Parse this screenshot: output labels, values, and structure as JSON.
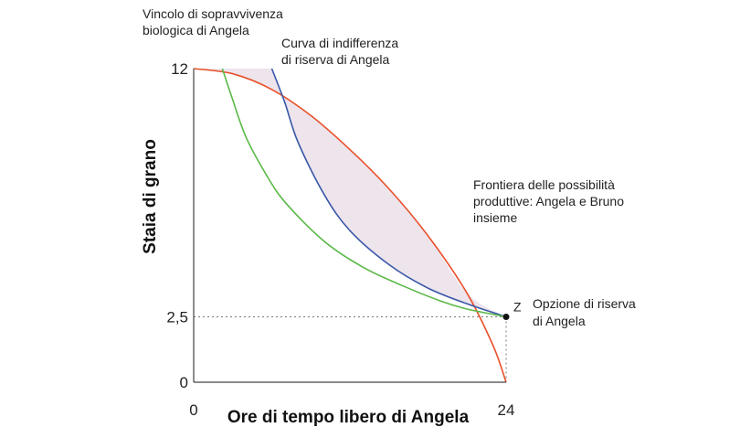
{
  "chart_data": {
    "type": "line",
    "xlabel": "Ore di tempo libero di Angela",
    "ylabel": "Staia di grano",
    "xlim": [
      0,
      24
    ],
    "ylim": [
      0,
      12
    ],
    "x_ticks": [
      "0",
      "24"
    ],
    "y_ticks": [
      "0",
      "2,5",
      "12"
    ],
    "grid": false,
    "shaded_region": "between frontier and reservation indifference curve",
    "series": [
      {
        "name": "Frontiera delle possibilità produttive: Angela e Bruno insieme",
        "color": "#e8502a",
        "x": [
          0,
          3,
          6,
          9,
          12,
          15,
          18,
          21,
          23,
          24
        ],
        "y": [
          12,
          11.8,
          11.2,
          10.2,
          8.9,
          7.4,
          5.6,
          3.4,
          1.4,
          0
        ]
      },
      {
        "name": "Curva di indifferenza di riserva di Angela",
        "color": "#3a57a8",
        "x": [
          6,
          7,
          8,
          10,
          12,
          15,
          18,
          21,
          24
        ],
        "y": [
          12,
          10.7,
          9.2,
          7.2,
          5.8,
          4.5,
          3.6,
          3.0,
          2.5
        ]
      },
      {
        "name": "Vincolo di sopravvivenza biologica di Angela",
        "color": "#5ab948",
        "x": [
          2.2,
          3,
          4,
          5.5,
          7,
          10,
          13,
          16,
          19,
          21,
          24
        ],
        "y": [
          12,
          10.8,
          9.4,
          8.0,
          6.9,
          5.4,
          4.4,
          3.7,
          3.1,
          2.8,
          2.5
        ]
      }
    ],
    "points": [
      {
        "label": "Z",
        "x": 24,
        "y": 2.5
      }
    ],
    "annotations": {
      "survival": [
        "Vincolo di sopravvivenza",
        "biologica di Angela"
      ],
      "indifference": [
        "Curva di indifferenza",
        "di riserva di Angela"
      ],
      "frontier": [
        "Frontiera delle possibilità",
        "produttive: Angela e Bruno",
        "insieme"
      ],
      "reservation": [
        "Opzione di riserva",
        "di Angela"
      ]
    },
    "colors": {
      "fill": "#ede4ec",
      "axis": "#444444",
      "point": "#111111",
      "guide": "#777777"
    }
  }
}
